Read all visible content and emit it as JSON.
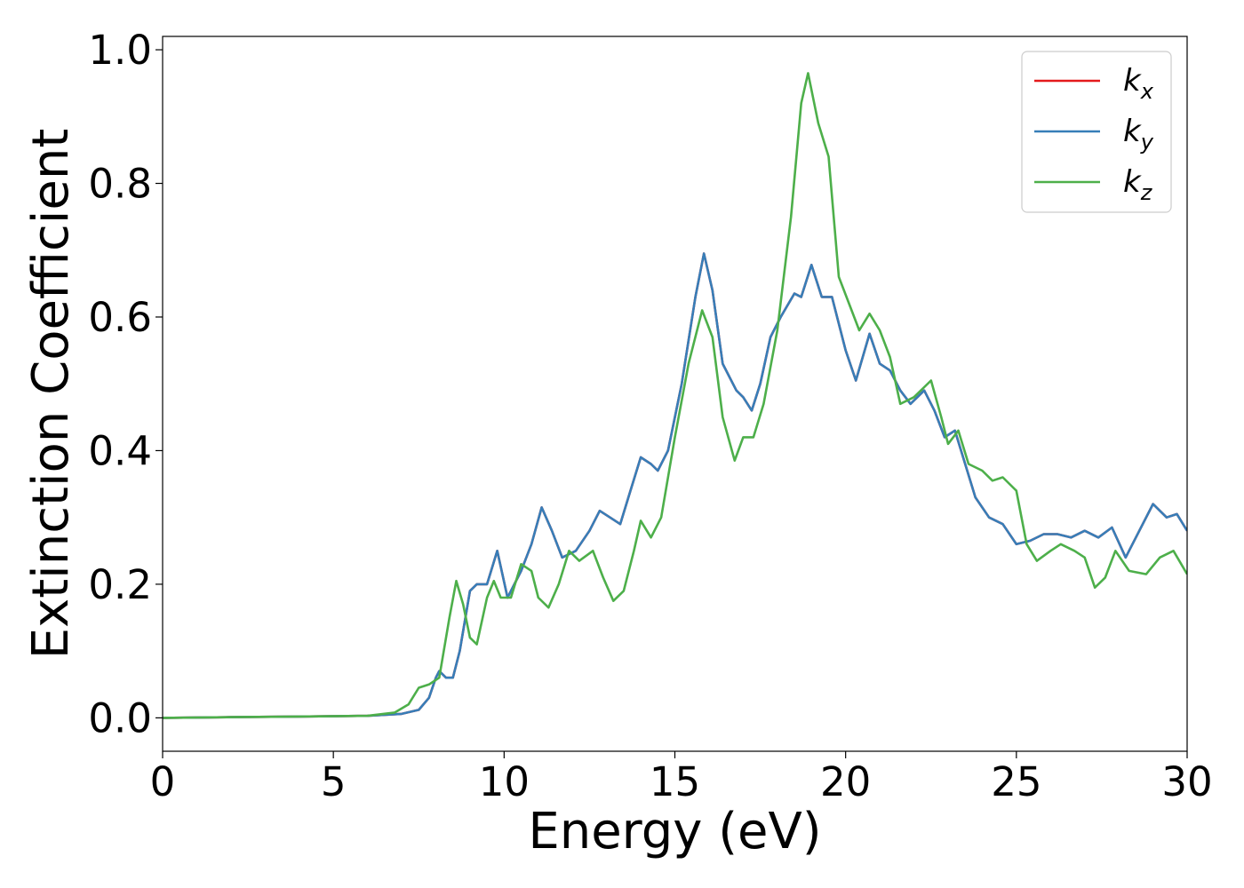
{
  "chart_data": {
    "type": "line",
    "xlabel": "Energy (eV)",
    "ylabel": "Extinction Coefficient",
    "xlim": [
      0,
      30
    ],
    "ylim": [
      -0.05,
      1.02
    ],
    "x_ticks": [
      0,
      5,
      10,
      15,
      20,
      25,
      30
    ],
    "x_tick_labels": [
      "0",
      "5",
      "10",
      "15",
      "20",
      "25",
      "30"
    ],
    "y_ticks": [
      0.0,
      0.2,
      0.4,
      0.6,
      0.8,
      1.0
    ],
    "y_tick_labels": [
      "0.0",
      "0.2",
      "0.4",
      "0.6",
      "0.8",
      "1.0"
    ],
    "grid": false,
    "legend_position": "top-right",
    "series": [
      {
        "name": "kx",
        "label_base": "k",
        "label_sub": "x",
        "color": "#e41a1c",
        "points": [
          [
            0,
            0
          ],
          [
            2,
            0.001
          ],
          [
            4,
            0.002
          ],
          [
            6,
            0.003
          ],
          [
            7,
            0.006
          ],
          [
            7.5,
            0.012
          ],
          [
            7.8,
            0.03
          ],
          [
            8.0,
            0.06
          ],
          [
            8.1,
            0.07
          ],
          [
            8.3,
            0.06
          ],
          [
            8.5,
            0.06
          ],
          [
            8.7,
            0.1
          ],
          [
            9.0,
            0.19
          ],
          [
            9.2,
            0.2
          ],
          [
            9.5,
            0.2
          ],
          [
            9.8,
            0.25
          ],
          [
            10.1,
            0.18
          ],
          [
            10.5,
            0.22
          ],
          [
            10.8,
            0.26
          ],
          [
            11.1,
            0.315
          ],
          [
            11.4,
            0.28
          ],
          [
            11.7,
            0.24
          ],
          [
            12.1,
            0.25
          ],
          [
            12.5,
            0.28
          ],
          [
            12.8,
            0.31
          ],
          [
            13.1,
            0.3
          ],
          [
            13.4,
            0.29
          ],
          [
            13.7,
            0.34
          ],
          [
            14.0,
            0.39
          ],
          [
            14.3,
            0.38
          ],
          [
            14.5,
            0.37
          ],
          [
            14.8,
            0.4
          ],
          [
            15.2,
            0.5
          ],
          [
            15.6,
            0.63
          ],
          [
            15.85,
            0.695
          ],
          [
            16.1,
            0.64
          ],
          [
            16.4,
            0.53
          ],
          [
            16.8,
            0.49
          ],
          [
            17.0,
            0.48
          ],
          [
            17.25,
            0.46
          ],
          [
            17.5,
            0.5
          ],
          [
            17.8,
            0.57
          ],
          [
            18.1,
            0.6
          ],
          [
            18.5,
            0.635
          ],
          [
            18.7,
            0.63
          ],
          [
            19.0,
            0.678
          ],
          [
            19.3,
            0.63
          ],
          [
            19.6,
            0.63
          ],
          [
            20.0,
            0.55
          ],
          [
            20.3,
            0.505
          ],
          [
            20.7,
            0.575
          ],
          [
            21.0,
            0.53
          ],
          [
            21.3,
            0.52
          ],
          [
            21.6,
            0.49
          ],
          [
            21.9,
            0.47
          ],
          [
            22.3,
            0.49
          ],
          [
            22.6,
            0.46
          ],
          [
            22.9,
            0.42
          ],
          [
            23.2,
            0.43
          ],
          [
            23.5,
            0.38
          ],
          [
            23.8,
            0.33
          ],
          [
            24.2,
            0.3
          ],
          [
            24.6,
            0.29
          ],
          [
            25.0,
            0.26
          ],
          [
            25.4,
            0.265
          ],
          [
            25.8,
            0.275
          ],
          [
            26.2,
            0.275
          ],
          [
            26.6,
            0.27
          ],
          [
            27.0,
            0.28
          ],
          [
            27.4,
            0.27
          ],
          [
            27.8,
            0.285
          ],
          [
            28.2,
            0.24
          ],
          [
            28.6,
            0.28
          ],
          [
            29.0,
            0.32
          ],
          [
            29.4,
            0.3
          ],
          [
            29.7,
            0.305
          ],
          [
            30,
            0.28
          ]
        ]
      },
      {
        "name": "ky",
        "label_base": "k",
        "label_sub": "y",
        "color": "#377eb8",
        "points": [
          [
            0,
            0
          ],
          [
            2,
            0.001
          ],
          [
            4,
            0.002
          ],
          [
            6,
            0.003
          ],
          [
            7,
            0.006
          ],
          [
            7.5,
            0.012
          ],
          [
            7.8,
            0.03
          ],
          [
            8.0,
            0.06
          ],
          [
            8.1,
            0.07
          ],
          [
            8.3,
            0.06
          ],
          [
            8.5,
            0.06
          ],
          [
            8.7,
            0.1
          ],
          [
            9.0,
            0.19
          ],
          [
            9.2,
            0.2
          ],
          [
            9.5,
            0.2
          ],
          [
            9.8,
            0.25
          ],
          [
            10.1,
            0.18
          ],
          [
            10.5,
            0.22
          ],
          [
            10.8,
            0.26
          ],
          [
            11.1,
            0.315
          ],
          [
            11.4,
            0.28
          ],
          [
            11.7,
            0.24
          ],
          [
            12.1,
            0.25
          ],
          [
            12.5,
            0.28
          ],
          [
            12.8,
            0.31
          ],
          [
            13.1,
            0.3
          ],
          [
            13.4,
            0.29
          ],
          [
            13.7,
            0.34
          ],
          [
            14.0,
            0.39
          ],
          [
            14.3,
            0.38
          ],
          [
            14.5,
            0.37
          ],
          [
            14.8,
            0.4
          ],
          [
            15.2,
            0.5
          ],
          [
            15.6,
            0.63
          ],
          [
            15.85,
            0.695
          ],
          [
            16.1,
            0.64
          ],
          [
            16.4,
            0.53
          ],
          [
            16.8,
            0.49
          ],
          [
            17.0,
            0.48
          ],
          [
            17.25,
            0.46
          ],
          [
            17.5,
            0.5
          ],
          [
            17.8,
            0.57
          ],
          [
            18.1,
            0.6
          ],
          [
            18.5,
            0.635
          ],
          [
            18.7,
            0.63
          ],
          [
            19.0,
            0.678
          ],
          [
            19.3,
            0.63
          ],
          [
            19.6,
            0.63
          ],
          [
            20.0,
            0.55
          ],
          [
            20.3,
            0.505
          ],
          [
            20.7,
            0.575
          ],
          [
            21.0,
            0.53
          ],
          [
            21.3,
            0.52
          ],
          [
            21.6,
            0.49
          ],
          [
            21.9,
            0.47
          ],
          [
            22.3,
            0.49
          ],
          [
            22.6,
            0.46
          ],
          [
            22.9,
            0.42
          ],
          [
            23.2,
            0.43
          ],
          [
            23.5,
            0.38
          ],
          [
            23.8,
            0.33
          ],
          [
            24.2,
            0.3
          ],
          [
            24.6,
            0.29
          ],
          [
            25.0,
            0.26
          ],
          [
            25.4,
            0.265
          ],
          [
            25.8,
            0.275
          ],
          [
            26.2,
            0.275
          ],
          [
            26.6,
            0.27
          ],
          [
            27.0,
            0.28
          ],
          [
            27.4,
            0.27
          ],
          [
            27.8,
            0.285
          ],
          [
            28.2,
            0.24
          ],
          [
            28.6,
            0.28
          ],
          [
            29.0,
            0.32
          ],
          [
            29.4,
            0.3
          ],
          [
            29.7,
            0.305
          ],
          [
            30,
            0.28
          ]
        ]
      },
      {
        "name": "kz",
        "label_base": "k",
        "label_sub": "z",
        "color": "#4daf4a",
        "points": [
          [
            0,
            0
          ],
          [
            2,
            0.001
          ],
          [
            4,
            0.002
          ],
          [
            6,
            0.003
          ],
          [
            6.8,
            0.008
          ],
          [
            7.2,
            0.02
          ],
          [
            7.5,
            0.045
          ],
          [
            7.8,
            0.05
          ],
          [
            8.1,
            0.06
          ],
          [
            8.4,
            0.15
          ],
          [
            8.6,
            0.205
          ],
          [
            8.8,
            0.17
          ],
          [
            9.0,
            0.12
          ],
          [
            9.2,
            0.11
          ],
          [
            9.5,
            0.18
          ],
          [
            9.7,
            0.205
          ],
          [
            9.9,
            0.18
          ],
          [
            10.2,
            0.18
          ],
          [
            10.5,
            0.23
          ],
          [
            10.8,
            0.22
          ],
          [
            11.0,
            0.18
          ],
          [
            11.3,
            0.165
          ],
          [
            11.6,
            0.2
          ],
          [
            11.9,
            0.25
          ],
          [
            12.2,
            0.235
          ],
          [
            12.6,
            0.25
          ],
          [
            12.9,
            0.21
          ],
          [
            13.2,
            0.175
          ],
          [
            13.5,
            0.19
          ],
          [
            13.8,
            0.25
          ],
          [
            14.0,
            0.295
          ],
          [
            14.3,
            0.27
          ],
          [
            14.6,
            0.3
          ],
          [
            15.0,
            0.42
          ],
          [
            15.4,
            0.53
          ],
          [
            15.8,
            0.61
          ],
          [
            16.1,
            0.57
          ],
          [
            16.4,
            0.45
          ],
          [
            16.75,
            0.385
          ],
          [
            17.0,
            0.42
          ],
          [
            17.3,
            0.42
          ],
          [
            17.6,
            0.47
          ],
          [
            18.0,
            0.58
          ],
          [
            18.4,
            0.75
          ],
          [
            18.7,
            0.92
          ],
          [
            18.9,
            0.965
          ],
          [
            19.2,
            0.89
          ],
          [
            19.5,
            0.84
          ],
          [
            19.8,
            0.66
          ],
          [
            20.1,
            0.62
          ],
          [
            20.4,
            0.58
          ],
          [
            20.7,
            0.605
          ],
          [
            21.0,
            0.58
          ],
          [
            21.3,
            0.54
          ],
          [
            21.6,
            0.47
          ],
          [
            22.0,
            0.48
          ],
          [
            22.5,
            0.505
          ],
          [
            22.8,
            0.45
          ],
          [
            23.0,
            0.41
          ],
          [
            23.3,
            0.43
          ],
          [
            23.6,
            0.38
          ],
          [
            24.0,
            0.37
          ],
          [
            24.3,
            0.355
          ],
          [
            24.6,
            0.36
          ],
          [
            25.0,
            0.34
          ],
          [
            25.3,
            0.26
          ],
          [
            25.6,
            0.235
          ],
          [
            26.0,
            0.25
          ],
          [
            26.3,
            0.26
          ],
          [
            26.7,
            0.25
          ],
          [
            27.0,
            0.24
          ],
          [
            27.3,
            0.195
          ],
          [
            27.6,
            0.21
          ],
          [
            27.9,
            0.25
          ],
          [
            28.3,
            0.22
          ],
          [
            28.8,
            0.215
          ],
          [
            29.2,
            0.24
          ],
          [
            29.6,
            0.25
          ],
          [
            30,
            0.215
          ]
        ]
      }
    ]
  }
}
